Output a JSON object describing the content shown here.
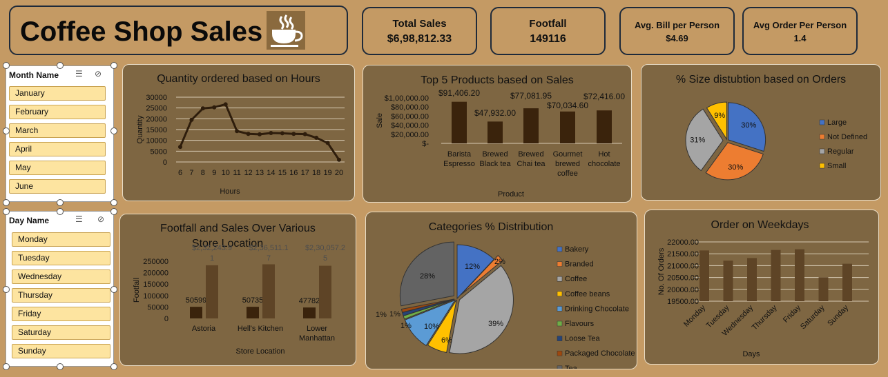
{
  "title": "Coffee Shop Sales",
  "kpis": [
    {
      "label": "Total Sales",
      "value": "$6,98,812.33"
    },
    {
      "label": "Footfall",
      "value": "149116"
    },
    {
      "label": "Avg. Bill per Person",
      "value": "$4.69"
    },
    {
      "label": "Avg Order Per Person",
      "value": "1.4"
    }
  ],
  "month_slicer": {
    "header": "Month Name",
    "items": [
      "January",
      "February",
      "March",
      "April",
      "May",
      "June"
    ]
  },
  "day_slicer": {
    "header": "Day Name",
    "items": [
      "Monday",
      "Tuesday",
      "Wednesday",
      "Thursday",
      "Friday",
      "Saturday",
      "Sunday"
    ]
  },
  "colors": {
    "bg": "#c49a64",
    "panel": "#7e6642",
    "bar": "#3a230c",
    "line": "#2e1d0c"
  },
  "chart_data": [
    {
      "id": "hours",
      "type": "line",
      "title": "Quantity ordered based on Hours",
      "xlabel": "Hours",
      "ylabel": "Quantity",
      "x": [
        "6",
        "7",
        "8",
        "9",
        "10",
        "11",
        "12",
        "13",
        "14",
        "15",
        "16",
        "17",
        "18",
        "19",
        "20"
      ],
      "values": [
        7000,
        19500,
        24800,
        25300,
        26700,
        14300,
        13000,
        12800,
        13400,
        13300,
        13000,
        12900,
        11200,
        8800,
        1000
      ],
      "yticks": [
        "30000",
        "25000",
        "20000",
        "15000",
        "10000",
        "5000",
        "0"
      ],
      "ylim": [
        0,
        30000
      ]
    },
    {
      "id": "top5",
      "type": "bar",
      "title": "Top 5 Products based on Sales",
      "xlabel": "Product",
      "ylabel": "Sale",
      "categories": [
        [
          "Barista",
          "Espresso"
        ],
        [
          "Brewed",
          "Black tea"
        ],
        [
          "Brewed",
          "Chai tea"
        ],
        [
          "Gourmet",
          "brewed",
          "coffee"
        ],
        [
          "Hot",
          "chocolate"
        ]
      ],
      "values": [
        91406.2,
        47932.0,
        77081.95,
        70034.6,
        72416.0
      ],
      "labels": [
        "$91,406.20",
        "$47,932.00",
        "$77,081.95",
        "$70,034.60",
        "$72,416.00"
      ],
      "yticks": [
        "$1,00,000.00",
        "$80,000.00",
        "$60,000.00",
        "$40,000.00",
        "$20,000.00",
        "$-"
      ],
      "ylim": [
        0,
        100000
      ]
    },
    {
      "id": "size",
      "type": "pie",
      "title": "% Size distubtion based on Orders",
      "slices": [
        {
          "name": "Large",
          "value": 30,
          "label": "30%",
          "color": "#4472c4"
        },
        {
          "name": "Not Defined",
          "value": 30,
          "label": "30%",
          "color": "#ed7d31"
        },
        {
          "name": "Regular",
          "value": 31,
          "label": "31%",
          "color": "#a5a5a5"
        },
        {
          "name": "Small",
          "value": 9,
          "label": "9%",
          "color": "#ffc000"
        }
      ],
      "legend": "right"
    },
    {
      "id": "footfall",
      "type": "bar",
      "title": [
        "Footfall and Sales Over Various",
        "Store Location"
      ],
      "xlabel": "Store Location",
      "ylabel": "Footfall",
      "categories": [
        [
          "Astoria"
        ],
        [
          "Hell's Kitchen"
        ],
        [
          "Lower",
          "Manhattan"
        ]
      ],
      "footfall": [
        50599,
        50735,
        47782
      ],
      "footfall_labels": [
        "50599",
        "50735",
        "47782"
      ],
      "sales": [
        232243.9,
        236511.17,
        230057.25
      ],
      "sales_labels": [
        [
          "$2,32,243.9",
          "1"
        ],
        [
          "$2,36,511.1",
          "7"
        ],
        [
          "$2,30,057.2",
          "5"
        ]
      ],
      "yticks": [
        "250000",
        "200000",
        "150000",
        "100000",
        "50000",
        "0"
      ],
      "ylim": [
        0,
        250000
      ]
    },
    {
      "id": "categories",
      "type": "pie",
      "title": "Categories % Distribution",
      "slices": [
        {
          "name": "Bakery",
          "value": 12,
          "label": "12%",
          "color": "#4472c4"
        },
        {
          "name": "Branded",
          "value": 2,
          "label": "2%",
          "color": "#ed7d31"
        },
        {
          "name": "Coffee",
          "value": 39,
          "label": "39%",
          "color": "#a5a5a5"
        },
        {
          "name": "Coffee beans",
          "value": 6,
          "label": "6%",
          "color": "#ffc000"
        },
        {
          "name": "Drinking Chocolate",
          "value": 10,
          "label": "10%",
          "color": "#5b9bd5"
        },
        {
          "name": "Flavours",
          "value": 1,
          "label": "1%",
          "color": "#70ad47"
        },
        {
          "name": "Loose Tea",
          "value": 1,
          "label": "1%",
          "color": "#264478"
        },
        {
          "name": "Packaged Chocolate",
          "value": 1,
          "label": "1%",
          "color": "#9e480e"
        },
        {
          "name": "Tea",
          "value": 28,
          "label": "28%",
          "color": "#636363"
        }
      ],
      "legend": "right"
    },
    {
      "id": "weekdays",
      "type": "bar",
      "title": "Order on Weekdays",
      "xlabel": "Days",
      "ylabel": "No. Of Orders",
      "categories": [
        "Monday",
        "Tuesday",
        "Wednesday",
        "Thursday",
        "Friday",
        "Saturday",
        "Sunday"
      ],
      "values": [
        21640,
        21210,
        21320,
        21660,
        21690,
        20510,
        21080
      ],
      "yticks": [
        "22000.00",
        "21500.00",
        "21000.00",
        "20500.00",
        "20000.00",
        "19500.00"
      ],
      "ylim": [
        19500,
        22000
      ]
    }
  ]
}
